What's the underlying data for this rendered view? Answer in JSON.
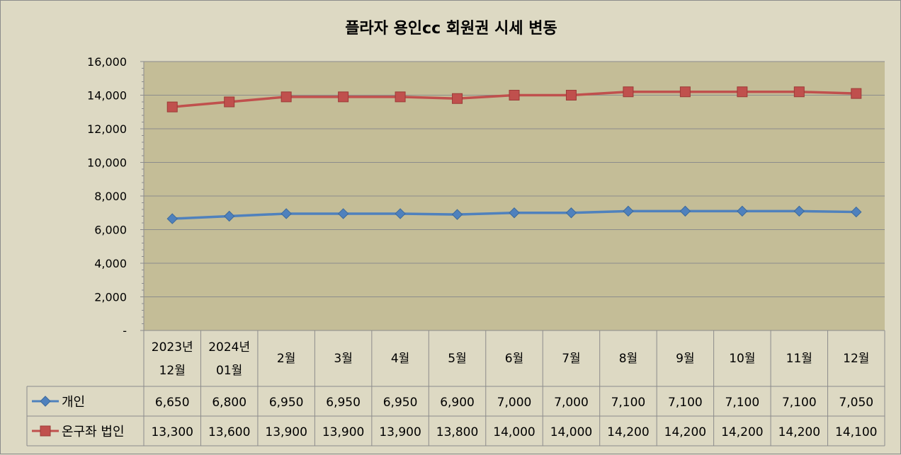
{
  "chart_data": {
    "type": "line",
    "title": "플라자 용인cc 회원권 시세 변동",
    "categories": [
      [
        "2023년",
        "12월"
      ],
      [
        "2024년",
        "01월"
      ],
      [
        "2월"
      ],
      [
        "3월"
      ],
      [
        "4월"
      ],
      [
        "5월"
      ],
      [
        "6월"
      ],
      [
        "7월"
      ],
      [
        "8월"
      ],
      [
        "9월"
      ],
      [
        "10월"
      ],
      [
        "11월"
      ],
      [
        "12월"
      ]
    ],
    "ylim": [
      0,
      16000
    ],
    "yticks": [
      "-",
      "2,000",
      "4,000",
      "6,000",
      "8,000",
      "10,000",
      "12,000",
      "14,000",
      "16,000"
    ],
    "ytick_values": [
      0,
      2000,
      4000,
      6000,
      8000,
      10000,
      12000,
      14000,
      16000
    ],
    "grid": true,
    "legend": "data-table",
    "series": [
      {
        "name": "개인",
        "color": "#4f81bd",
        "marker": "diamond",
        "values": [
          6650,
          6800,
          6950,
          6950,
          6950,
          6900,
          7000,
          7000,
          7100,
          7100,
          7100,
          7100,
          7050
        ],
        "labels": [
          "6,650",
          "6,800",
          "6,950",
          "6,950",
          "6,950",
          "6,900",
          "7,000",
          "7,000",
          "7,100",
          "7,100",
          "7,100",
          "7,100",
          "7,050"
        ]
      },
      {
        "name": "온구좌 법인",
        "color": "#c0504d",
        "marker": "square",
        "values": [
          13300,
          13600,
          13900,
          13900,
          13900,
          13800,
          14000,
          14000,
          14200,
          14200,
          14200,
          14200,
          14100
        ],
        "labels": [
          "13,300",
          "13,600",
          "13,900",
          "13,900",
          "13,900",
          "13,800",
          "14,000",
          "14,000",
          "14,200",
          "14,200",
          "14,200",
          "14,200",
          "14,100"
        ]
      }
    ]
  }
}
